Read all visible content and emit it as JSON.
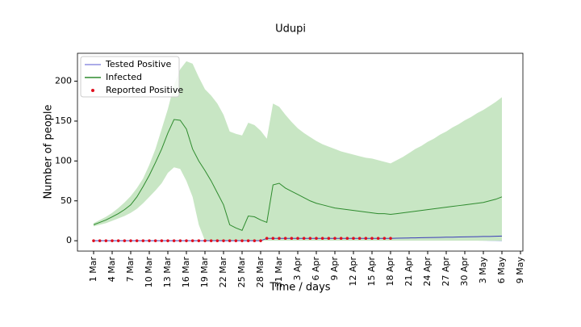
{
  "chart_data": {
    "type": "line",
    "title": "Udupi",
    "xlabel": "Time / days",
    "ylabel": "Number of people",
    "x": [
      "1 Mar",
      "2 Mar",
      "3 Mar",
      "4 Mar",
      "5 Mar",
      "6 Mar",
      "7 Mar",
      "8 Mar",
      "9 Mar",
      "10 Mar",
      "11 Mar",
      "12 Mar",
      "13 Mar",
      "14 Mar",
      "15 Mar",
      "16 Mar",
      "17 Mar",
      "18 Mar",
      "19 Mar",
      "20 Mar",
      "21 Mar",
      "22 Mar",
      "23 Mar",
      "24 Mar",
      "25 Mar",
      "26 Mar",
      "27 Mar",
      "28 Mar",
      "29 Mar",
      "30 Mar",
      "31 Mar",
      "1 Apr",
      "2 Apr",
      "3 Apr",
      "4 Apr",
      "5 Apr",
      "6 Apr",
      "7 Apr",
      "8 Apr",
      "9 Apr",
      "10 Apr",
      "11 Apr",
      "12 Apr",
      "13 Apr",
      "14 Apr",
      "15 Apr",
      "16 Apr",
      "17 Apr",
      "18 Apr",
      "19 Apr",
      "20 Apr",
      "21 Apr",
      "22 Apr",
      "23 Apr",
      "24 Apr",
      "25 Apr",
      "26 Apr",
      "27 Apr",
      "28 Apr",
      "29 Apr",
      "30 Apr",
      "1 May",
      "2 May",
      "3 May",
      "4 May",
      "5 May",
      "6 May",
      "7 May",
      "8 May",
      "9 May"
    ],
    "ylim": [
      -13,
      235
    ],
    "yticks": [
      0,
      50,
      100,
      150,
      200
    ],
    "legend": "upper left",
    "series": [
      {
        "name": "Tested Positive",
        "color": "#3a3ab8",
        "legend_color": "#8f8fe0",
        "band_color": "#7f9fd8",
        "values": [
          0,
          0,
          0,
          0,
          0,
          0,
          0,
          0,
          0,
          0,
          0,
          0,
          0,
          0,
          0,
          0,
          0,
          0,
          0,
          0,
          0,
          0,
          0,
          0,
          0,
          0,
          0,
          0,
          3,
          3,
          3,
          3,
          3,
          3,
          3,
          3,
          3,
          3,
          3,
          3,
          3,
          3,
          3,
          3,
          3,
          3,
          3,
          3,
          3,
          3.2,
          3.3,
          3.5,
          3.6,
          3.8,
          3.9,
          4.1,
          4.2,
          4.4,
          4.5,
          4.7,
          4.8,
          5,
          5.1,
          5.3,
          5.4,
          5.6,
          5.8,
          null,
          null,
          null
        ],
        "upper": [
          null,
          null,
          null,
          null,
          null,
          null,
          null,
          null,
          null,
          null,
          null,
          null,
          null,
          null,
          null,
          null,
          null,
          null,
          null,
          null,
          null,
          null,
          null,
          null,
          null,
          null,
          null,
          null,
          null,
          null,
          null,
          null,
          null,
          null,
          null,
          null,
          null,
          null,
          null,
          null,
          null,
          null,
          null,
          null,
          null,
          null,
          null,
          null,
          3,
          3.8,
          4.6,
          5.4,
          6.1,
          6.9,
          7.7,
          8.4,
          9.2,
          10,
          10.7,
          11.5,
          12.3,
          13,
          13.8,
          14.6,
          15.3,
          16.1,
          17,
          null,
          null,
          null
        ],
        "lower": [
          null,
          null,
          null,
          null,
          null,
          null,
          null,
          null,
          null,
          null,
          null,
          null,
          null,
          null,
          null,
          null,
          null,
          null,
          null,
          null,
          null,
          null,
          null,
          null,
          null,
          null,
          null,
          null,
          null,
          null,
          null,
          null,
          null,
          null,
          null,
          null,
          null,
          null,
          null,
          null,
          null,
          null,
          null,
          null,
          null,
          null,
          null,
          null,
          3,
          2.8,
          2.6,
          2.4,
          2.2,
          2,
          1.8,
          1.6,
          1.4,
          1.2,
          1,
          0.8,
          0.6,
          0.4,
          0.2,
          0,
          -0.2,
          -0.4,
          -0.6,
          null,
          null,
          null
        ]
      },
      {
        "name": "Infected",
        "color": "#2e8b2e",
        "legend_color": "#2e8b2e",
        "band_color": "#c8e6c4",
        "values": [
          20,
          23,
          26,
          30,
          34,
          39,
          45,
          55,
          68,
          82,
          98,
          115,
          135,
          152,
          151,
          140,
          115,
          100,
          88,
          75,
          60,
          45,
          20,
          16,
          13,
          31,
          30,
          26,
          23,
          70,
          72,
          66,
          62,
          58,
          54,
          50,
          47,
          45,
          43,
          41,
          40,
          39,
          38,
          37,
          36,
          35,
          34,
          34,
          33,
          34,
          35,
          36,
          37,
          38,
          39,
          40,
          41,
          42,
          43,
          44,
          45,
          46,
          47,
          48,
          50,
          52,
          55,
          null,
          null,
          null
        ],
        "upper": [
          22,
          26,
          30,
          35,
          41,
          48,
          56,
          66,
          78,
          95,
          115,
          140,
          165,
          195,
          215,
          225,
          222,
          205,
          190,
          182,
          172,
          158,
          137,
          134,
          132,
          148,
          145,
          138,
          128,
          172,
          168,
          158,
          149,
          141,
          135,
          130,
          125,
          121,
          118,
          115,
          112,
          110,
          108,
          106,
          104,
          103,
          101,
          99,
          97,
          101,
          105,
          110,
          115,
          119,
          124,
          128,
          133,
          137,
          142,
          146,
          151,
          155,
          160,
          164,
          169,
          174,
          180,
          null,
          null,
          null
        ],
        "lower": [
          18,
          20,
          22,
          25,
          28,
          31,
          35,
          40,
          47,
          55,
          63,
          72,
          85,
          92,
          90,
          75,
          55,
          20,
          0,
          0,
          0,
          0,
          0,
          0,
          0,
          0,
          0,
          0,
          0,
          0,
          0,
          0,
          0,
          0,
          0,
          0,
          0,
          0,
          0,
          0,
          0,
          0,
          0,
          0,
          0,
          0,
          0,
          0,
          0,
          0,
          0,
          0,
          0,
          0,
          0,
          0,
          0,
          0,
          0,
          0,
          0,
          0,
          0,
          0,
          0,
          0,
          0,
          null,
          null,
          null
        ]
      },
      {
        "name": "Reported Positive",
        "kind": "scatter",
        "color": "#e0101e",
        "legend_color": "#e0101e",
        "values": [
          0,
          0,
          0,
          0,
          0,
          0,
          0,
          0,
          0,
          0,
          0,
          0,
          0,
          0,
          0,
          0,
          0,
          0,
          0,
          0,
          0,
          0,
          0,
          0,
          0,
          0,
          0,
          0,
          3,
          3,
          3,
          3,
          3,
          3,
          3,
          3,
          3,
          3,
          3,
          3,
          3,
          3,
          3,
          3,
          3,
          3,
          3,
          3,
          3,
          null,
          null,
          null,
          null,
          null,
          null,
          null,
          null,
          null,
          null,
          null,
          null,
          null,
          null,
          null,
          null,
          null,
          null,
          null,
          null,
          null
        ]
      }
    ]
  }
}
